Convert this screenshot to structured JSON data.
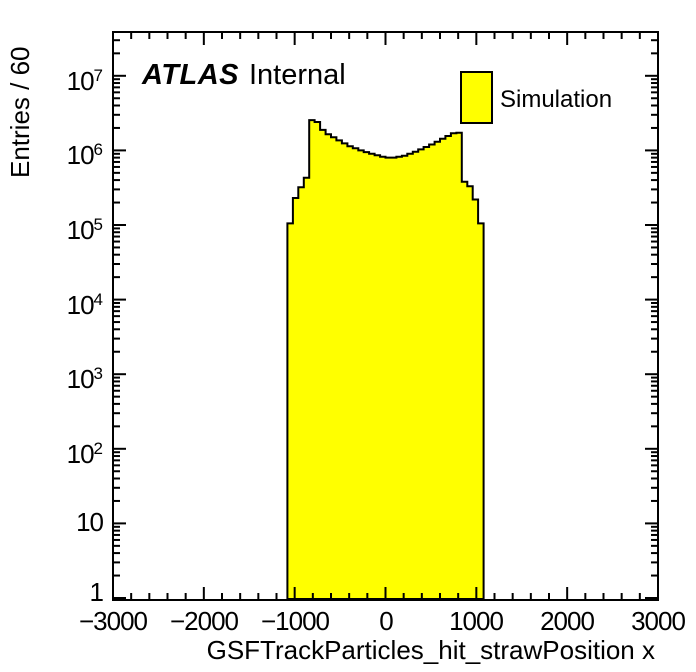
{
  "plot": {
    "atlas_label": "ATLAS",
    "atlas_status": "Internal",
    "legend": {
      "entries": [
        {
          "label": "Simulation",
          "fill_color": "#ffff00",
          "border_color": "#000000"
        }
      ]
    }
  },
  "chart_data": {
    "type": "bar",
    "title": "",
    "xlabel": "GSFTrackParticles_hit_strawPosition x",
    "ylabel": "Entries / 60",
    "legend_position": "top-right",
    "grid": false,
    "fill_color": "#ffff00",
    "line_color": "#000000",
    "x_axis": {
      "min": -3000,
      "max": 3000,
      "major_tick_step": 1000,
      "minor_tick_step": 200,
      "tick_labels": [
        "−3000",
        "−2000",
        "−1000",
        "0",
        "1000",
        "2000",
        "3000"
      ]
    },
    "y_axis": {
      "scale": "log",
      "min": 1,
      "max": 37000000,
      "tick_labels": [
        "1",
        "10",
        "10^2",
        "10^3",
        "10^4",
        "10^5",
        "10^6",
        "10^7"
      ]
    },
    "series": [
      {
        "name": "Simulation",
        "histogram": {
          "bin_width": 60,
          "first_bin_left_edge": -1080,
          "values": [
            105000,
            230000,
            320000,
            430000,
            2550000,
            2400000,
            1880000,
            1650000,
            1500000,
            1360000,
            1240000,
            1140000,
            1070000,
            1000000,
            950000,
            900000,
            860000,
            820000,
            800000,
            800000,
            820000,
            850000,
            900000,
            960000,
            1030000,
            1110000,
            1200000,
            1310000,
            1430000,
            1560000,
            1700000,
            1720000,
            380000,
            330000,
            220000,
            105000
          ]
        }
      }
    ]
  }
}
